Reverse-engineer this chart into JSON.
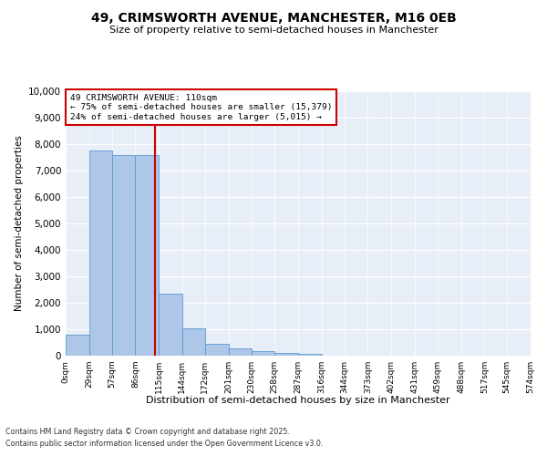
{
  "title1": "49, CRIMSWORTH AVENUE, MANCHESTER, M16 0EB",
  "title2": "Size of property relative to semi-detached houses in Manchester",
  "xlabel": "Distribution of semi-detached houses by size in Manchester",
  "ylabel": "Number of semi-detached properties",
  "footer1": "Contains HM Land Registry data © Crown copyright and database right 2025.",
  "footer2": "Contains public sector information licensed under the Open Government Licence v3.0.",
  "annotation_title": "49 CRIMSWORTH AVENUE: 110sqm",
  "annotation_line1": "← 75% of semi-detached houses are smaller (15,379)",
  "annotation_line2": "24% of semi-detached houses are larger (5,015) →",
  "property_size": 110,
  "bin_edges": [
    0,
    29,
    57,
    86,
    115,
    144,
    172,
    201,
    230,
    258,
    287,
    316,
    344,
    373,
    402,
    431,
    459,
    488,
    517,
    545,
    574
  ],
  "bin_counts": [
    800,
    7750,
    7600,
    7600,
    2350,
    1030,
    440,
    280,
    170,
    110,
    80,
    0,
    0,
    0,
    0,
    0,
    0,
    0,
    0,
    0
  ],
  "bar_color": "#aec6e8",
  "bar_edge_color": "#5b9bd5",
  "vline_color": "#cc0000",
  "vline_x": 110,
  "annotation_box_color": "#cc0000",
  "background_color": "#e8eef8",
  "ylim": [
    0,
    10000
  ],
  "yticks": [
    0,
    1000,
    2000,
    3000,
    4000,
    5000,
    6000,
    7000,
    8000,
    9000,
    10000
  ]
}
